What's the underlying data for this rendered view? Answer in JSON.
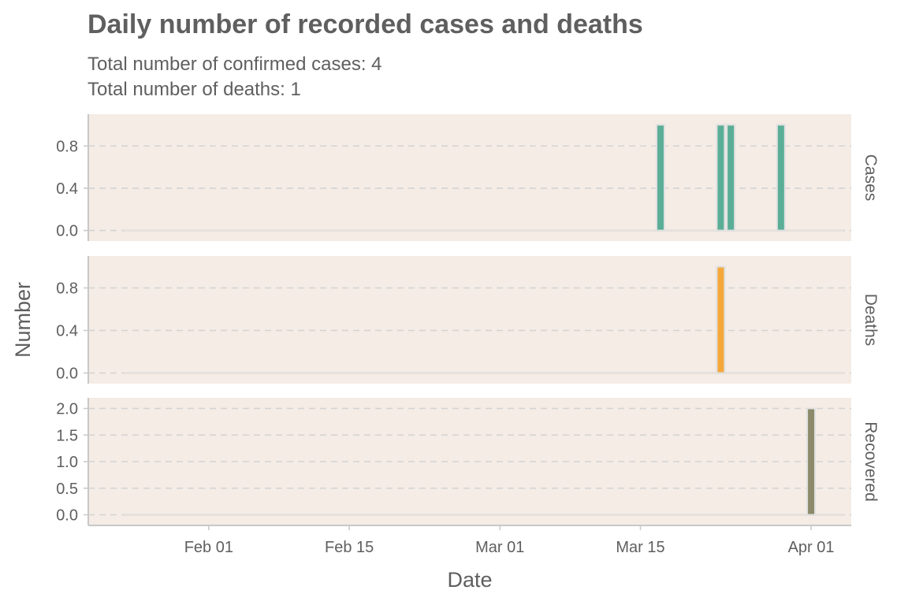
{
  "title": "Daily number of recorded cases and deaths",
  "subtitle_lines": [
    "Total number of confirmed cases: 4",
    "Total number of deaths: 1"
  ],
  "colors": {
    "panel_bg": "#f4ece5",
    "grid": "#d3d3d3",
    "axis": "#c8c8c8",
    "text": "#5f5f5f",
    "bar_outline": "#e0e0e0"
  },
  "chart_data": {
    "type": "bar",
    "xlabel": "Date",
    "ylabel": "Number",
    "x_axis": {
      "type": "date",
      "range": [
        "2020-01-20",
        "2020-04-05"
      ],
      "ticks": [
        {
          "date": "2020-02-01",
          "label": "Feb 01"
        },
        {
          "date": "2020-02-15",
          "label": "Feb 15"
        },
        {
          "date": "2020-03-01",
          "label": "Mar 01"
        },
        {
          "date": "2020-03-15",
          "label": "Mar 15"
        },
        {
          "date": "2020-04-01",
          "label": "Apr 01"
        }
      ]
    },
    "grid": "horizontal dashed",
    "facets": [
      {
        "name": "Cases",
        "color": "#5aae96",
        "ylim": [
          -0.1,
          1.1
        ],
        "yticks": [
          0.0,
          0.4,
          0.8
        ],
        "ytick_labels": [
          "0.0",
          "0.4",
          "0.8"
        ],
        "points": [
          {
            "date": "2020-03-17",
            "value": 1
          },
          {
            "date": "2020-03-23",
            "value": 1
          },
          {
            "date": "2020-03-24",
            "value": 1
          },
          {
            "date": "2020-03-29",
            "value": 1
          }
        ]
      },
      {
        "name": "Deaths",
        "color": "#f5a83a",
        "ylim": [
          -0.1,
          1.1
        ],
        "yticks": [
          0.0,
          0.4,
          0.8
        ],
        "ytick_labels": [
          "0.0",
          "0.4",
          "0.8"
        ],
        "points": [
          {
            "date": "2020-03-23",
            "value": 1
          }
        ]
      },
      {
        "name": "Recovered",
        "color": "#8c8a6a",
        "ylim": [
          -0.2,
          2.2
        ],
        "yticks": [
          0.0,
          0.5,
          1.0,
          1.5,
          2.0
        ],
        "ytick_labels": [
          "0.0",
          "0.5",
          "1.0",
          "1.5",
          "2.0"
        ],
        "points": [
          {
            "date": "2020-04-01",
            "value": 2
          }
        ]
      }
    ]
  }
}
